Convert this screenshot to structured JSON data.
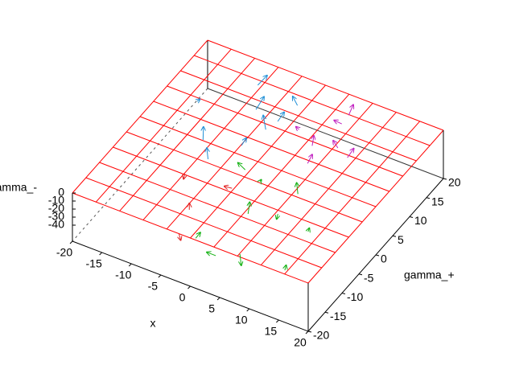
{
  "chart_data": {
    "type": "vector3d",
    "xlabel": "x",
    "ylabel": "gamma_+",
    "zlabel": "gamma_-",
    "xlim": [
      -20,
      20
    ],
    "xticks": [
      -20,
      -15,
      -10,
      -5,
      0,
      5,
      10,
      15,
      20
    ],
    "ylim": [
      -20,
      20
    ],
    "yticks": [
      -20,
      -15,
      -10,
      -5,
      0,
      5,
      10,
      15,
      20
    ],
    "zlim": [
      -60,
      0
    ],
    "zticks": [
      0,
      -10,
      -20,
      -30,
      -40
    ],
    "grid": true,
    "grid_color": "#ff0000",
    "series": [
      {
        "color": "#1f8fd6",
        "x": [
          -10.4,
          -7.9,
          -3.1,
          -4.4,
          -5.7,
          -11.2,
          -8.4,
          -3.8,
          -16.3
        ],
        "y": [
          18.1,
          13.2,
          17.1,
          10,
          5.1,
          3.3,
          -0.1,
          12.5,
          10.4
        ],
        "z": [
          -20,
          -20,
          -20,
          -20,
          -20,
          -20,
          -20,
          -20,
          -20
        ],
        "dx": [
          1,
          0.5,
          -0.5,
          -1,
          0.5,
          -0.5,
          -0.5,
          0.5,
          0.5
        ],
        "dy": [
          1,
          1.5,
          -0.5,
          1,
          0.5,
          1,
          0.5,
          1,
          0
        ],
        "dz": [
          10,
          10,
          12,
          10,
          8,
          10,
          10,
          8,
          4
        ]
      },
      {
        "color": "#c020c0",
        "x": [
          4.5,
          4.6,
          3.3,
          4.7,
          6.8,
          9.1,
          -0.2
        ],
        "y": [
          19,
          16.8,
          10.3,
          6.5,
          11.8,
          10.6,
          12.5
        ],
        "z": [
          -20,
          -20,
          -20,
          -20,
          -20,
          -20,
          -20
        ],
        "dx": [
          0.5,
          -1,
          0,
          0.5,
          -0.5,
          0.5,
          -0.5
        ],
        "dy": [
          0.5,
          -0.5,
          0.5,
          0.5,
          -0.5,
          1,
          0
        ],
        "dz": [
          12,
          4,
          10,
          10,
          10,
          8,
          2
        ]
      },
      {
        "color": "#10b010",
        "x": [
          -2.5,
          0.7,
          6.9,
          6.6,
          2.8,
          12.4,
          -1.1,
          3.4,
          6.3,
          13.8
        ],
        "y": [
          0.6,
          -0.6,
          -0.2,
          -5.6,
          -7.8,
          -6.8,
          -16.5,
          -18.4,
          -16.3,
          -16.1
        ],
        "z": [
          -20,
          -20,
          -20,
          -20,
          -20,
          -20,
          -20,
          -20,
          -20,
          -20
        ],
        "dx": [
          -1.5,
          0.5,
          -0.5,
          -0.5,
          0,
          0.5,
          0.5,
          -1.5,
          0.5,
          0.5
        ],
        "dy": [
          0.5,
          -0.5,
          0.5,
          0.5,
          0.5,
          -0.5,
          0.5,
          0,
          -0.5,
          -0.5
        ],
        "dz": [
          2,
          6,
          10,
          -10,
          12,
          8,
          6,
          0,
          -10,
          10
        ]
      },
      {
        "color": "#e02020",
        "x": [
          -9.7,
          -5.1,
          -3.7,
          -2.1
        ],
        "y": [
          -4.7,
          -11.4,
          -16.9,
          -4
        ],
        "z": [
          -20,
          -20,
          -20,
          -20
        ],
        "dx": [
          -0.5,
          0,
          0,
          -1
        ],
        "dy": [
          0.5,
          0,
          0.5,
          -0.5
        ],
        "dz": [
          -10,
          8,
          -10,
          2
        ]
      }
    ]
  }
}
